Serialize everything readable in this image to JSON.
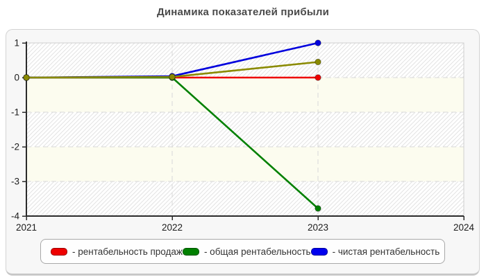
{
  "page": {
    "title": "Динамика показателей прибыли"
  },
  "chart_data": {
    "type": "line",
    "title": "Динамика показателей прибыли",
    "x": [
      2021,
      2022,
      2023
    ],
    "x_axis": {
      "ticks": [
        "2021",
        "2022",
        "2023",
        "2024"
      ],
      "tick_values": [
        2021,
        2022,
        2023,
        2024
      ],
      "range": [
        2021,
        2024
      ]
    },
    "y_axis": {
      "ticks": [
        "1",
        "0",
        "-1",
        "-2",
        "-3",
        "-4"
      ],
      "tick_values": [
        1,
        0,
        -1,
        -2,
        -3,
        -4
      ],
      "range": [
        -4,
        1
      ]
    },
    "grid": "dashed",
    "plot_bands_alternating": [
      "hatched",
      "cream"
    ],
    "colors": {
      "cream_band": "#fcfcef",
      "hatch_line": "#e3e3e3",
      "gridline": "#d8d8d8",
      "axis": "#2b2b2b",
      "plot_border": "#cfcfcf"
    },
    "series": [
      {
        "name": "рентабельность продаж",
        "color": "#ee0000",
        "values": [
          0,
          0,
          0
        ],
        "in_legend": true
      },
      {
        "name": "общая рентабельность",
        "color": "#008000",
        "values": [
          0,
          0,
          -3.78
        ],
        "in_legend": true
      },
      {
        "name": "чистая рентабельность",
        "color": "#0000dd",
        "values": [
          0,
          0.04,
          1.0
        ],
        "in_legend": true
      },
      {
        "name": "",
        "color": "#8a8a00",
        "values": [
          0,
          0.02,
          0.45
        ],
        "in_legend": false
      }
    ],
    "legend_position": "bottom"
  },
  "legend": {
    "items": [
      {
        "label": "- рентабельность продаж",
        "color": "#ee0000"
      },
      {
        "label": "- общая рентабельность",
        "color": "#008000"
      },
      {
        "label": "- чистая рентабельность",
        "color": "#0000ee"
      }
    ]
  }
}
